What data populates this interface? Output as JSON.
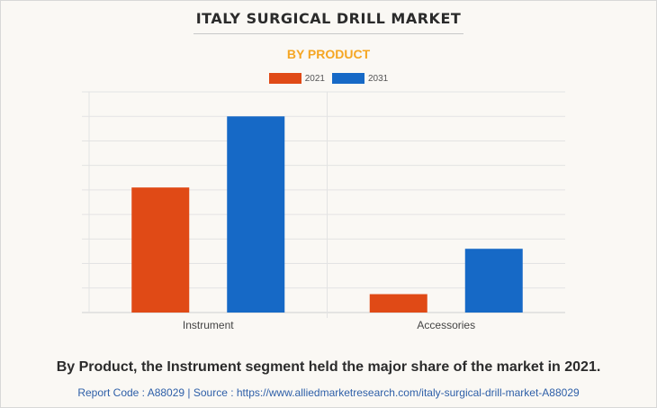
{
  "header": {
    "title": "ITALY SURGICAL DRILL MARKET",
    "subtitle": "BY PRODUCT"
  },
  "chart_data": {
    "type": "bar",
    "categories": [
      "Instrument",
      "Accessories"
    ],
    "series": [
      {
        "name": "2021",
        "values": [
          51,
          7.5
        ],
        "color": "#e04a16"
      },
      {
        "name": "2031",
        "values": [
          80,
          26
        ],
        "color": "#1669c6"
      }
    ],
    "ylim": [
      0,
      90
    ],
    "grid": true,
    "legend_position": "top-center"
  },
  "caption": "By Product, the Instrument segment held the major share of the market in 2021.",
  "footer": "Report Code : A88029  |  Source : https://www.alliedmarketresearch.com/italy-surgical-drill-market-A88029"
}
